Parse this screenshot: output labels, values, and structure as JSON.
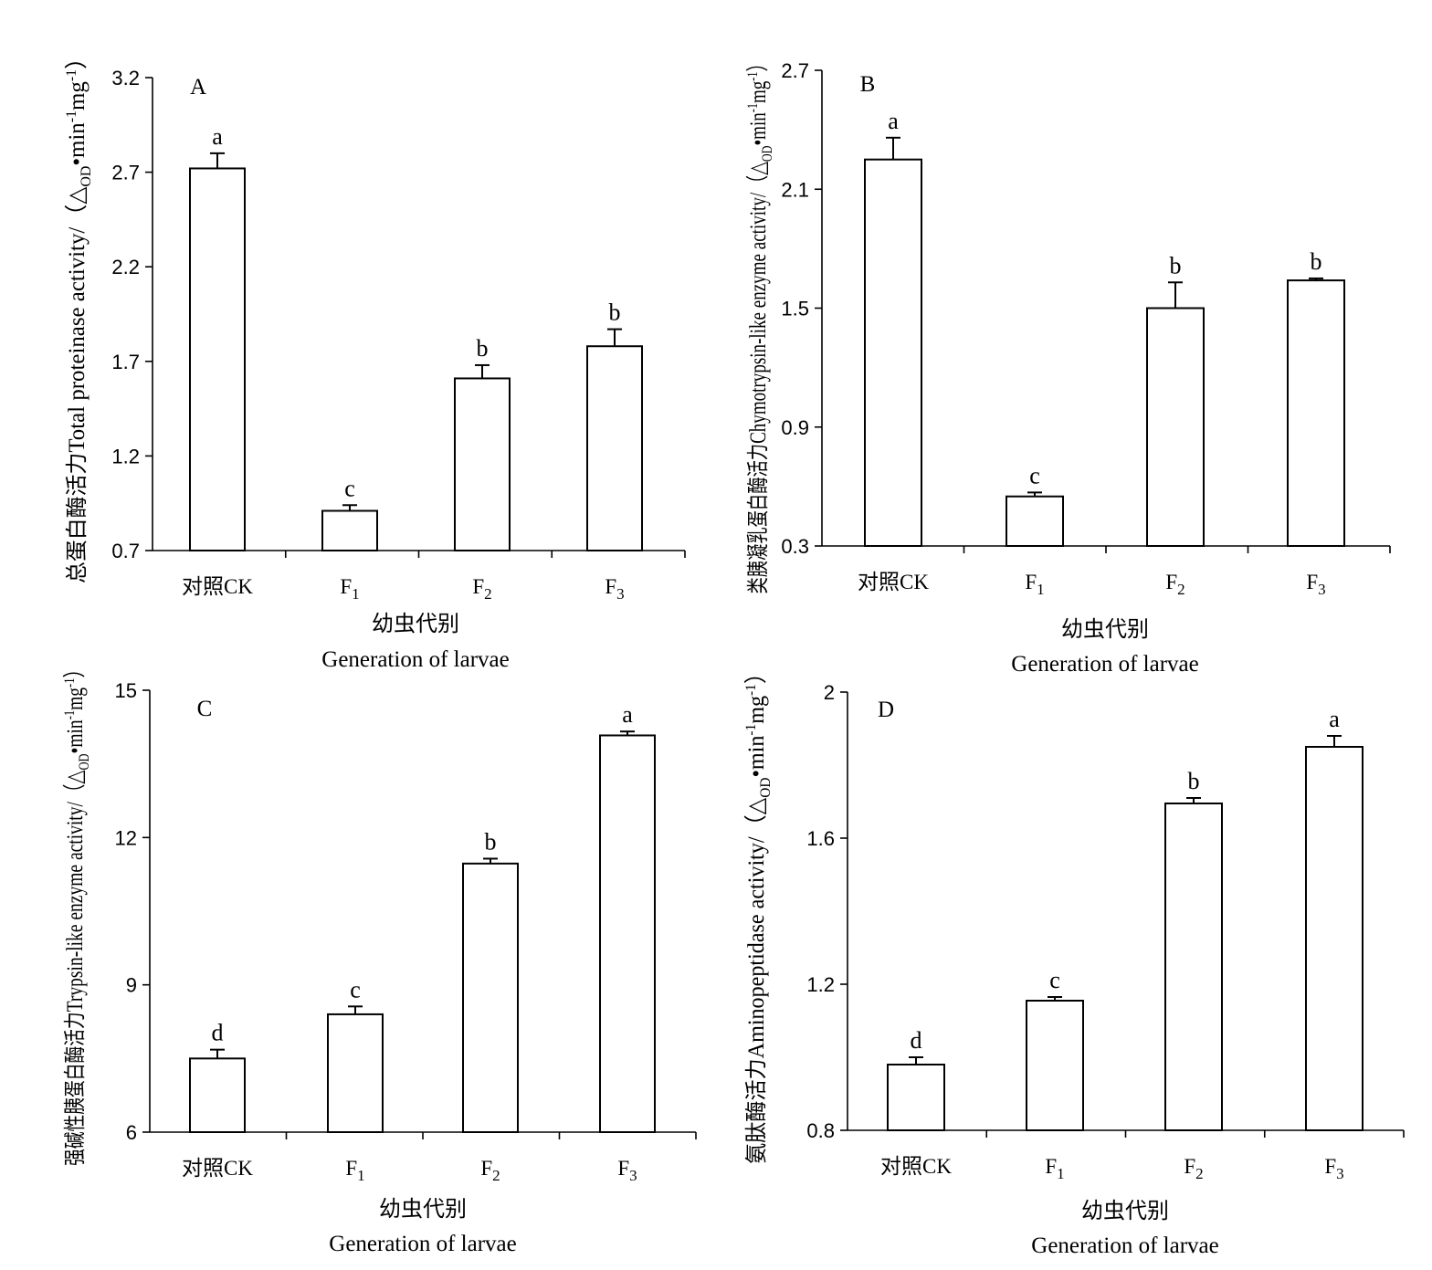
{
  "chart_data": [
    {
      "type": "bar",
      "panel": "A",
      "categories": [
        "对照CK",
        "F1",
        "F2",
        "F3"
      ],
      "values": [
        2.72,
        0.91,
        1.61,
        1.78
      ],
      "errors": [
        0.08,
        0.03,
        0.07,
        0.09
      ],
      "significance": [
        "a",
        "c",
        "b",
        "b"
      ],
      "ylim": [
        0.7,
        3.2
      ],
      "yticks": [
        "0.7",
        "1.2",
        "1.7",
        "2.2",
        "2.7",
        "3.2"
      ],
      "ylabel_cn": "总蛋白酶活力",
      "ylabel_en": "Total proteinase activity/（△",
      "ylabel_unit": "•min",
      "ylabel_unit2": "mg",
      "xlabel_cn": "幼虫代别",
      "xlabel_en": "Generation of larvae"
    },
    {
      "type": "bar",
      "panel": "B",
      "categories": [
        "对照CK",
        "F1",
        "F2",
        "F3"
      ],
      "values": [
        2.25,
        0.55,
        1.5,
        1.64
      ],
      "errors": [
        0.11,
        0.02,
        0.13,
        0.01
      ],
      "significance": [
        "a",
        "c",
        "b",
        "b"
      ],
      "ylim": [
        0.3,
        2.7
      ],
      "yticks": [
        "0.3",
        "0.9",
        "1.5",
        "2.1",
        "2.7"
      ],
      "ylabel_cn": "类胰凝乳蛋白酶活力",
      "ylabel_en": "Chymotrypsin-like enzyme activity/（△",
      "ylabel_unit": "•min",
      "ylabel_unit2": "mg",
      "xlabel_cn": "幼虫代别",
      "xlabel_en": "Generation of larvae"
    },
    {
      "type": "bar",
      "panel": "C",
      "categories": [
        "对照CK",
        "F1",
        "F2",
        "F3"
      ],
      "values": [
        7.5,
        8.4,
        11.47,
        14.08
      ],
      "errors": [
        0.18,
        0.16,
        0.1,
        0.08
      ],
      "significance": [
        "d",
        "c",
        "b",
        "a"
      ],
      "ylim": [
        6,
        15
      ],
      "yticks": [
        "6",
        "9",
        "12",
        "15"
      ],
      "ylabel_cn": "强碱性胰蛋白酶活力",
      "ylabel_en": "Trypsin-like enzyme activity/（△",
      "ylabel_unit": "•min",
      "ylabel_unit2": "mg",
      "xlabel_cn": "幼虫代别",
      "xlabel_en": "Generation of larvae"
    },
    {
      "type": "bar",
      "panel": "D",
      "categories": [
        "对照CK",
        "F1",
        "F2",
        "F3"
      ],
      "values": [
        0.98,
        1.155,
        1.695,
        1.85
      ],
      "errors": [
        0.02,
        0.01,
        0.015,
        0.03
      ],
      "significance": [
        "d",
        "c",
        "b",
        "a"
      ],
      "ylim": [
        0.8,
        2.0
      ],
      "yticks": [
        "0.8",
        "1.2",
        "1.6",
        "2"
      ],
      "ylabel_cn": "氨肽酶活力",
      "ylabel_en": "Aminopeptidase activity/（△",
      "ylabel_unit": "•min",
      "ylabel_unit2": "mg",
      "xlabel_cn": "幼虫代别",
      "xlabel_en": "Generation of larvae"
    }
  ],
  "ylabel_tail": {
    "od": "OD",
    "exp": "-1",
    "close": "）"
  }
}
